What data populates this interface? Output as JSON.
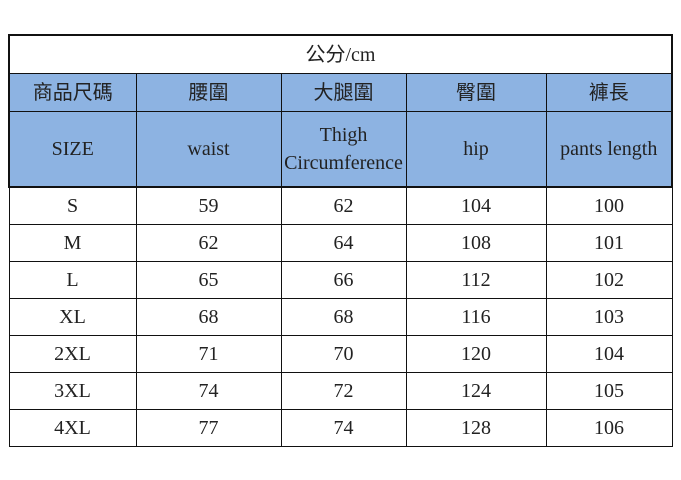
{
  "title": "公分/cm",
  "header_zh": [
    "商品尺碼",
    "腰圍",
    "大腿圍",
    "臀圍",
    "褲長"
  ],
  "header_en": [
    "SIZE",
    "waist",
    "Thigh Circumference",
    "hip",
    "pants length"
  ],
  "header_color": "#8db3e2",
  "rows": [
    [
      "S",
      "59",
      "62",
      "104",
      "100"
    ],
    [
      "M",
      "62",
      "64",
      "108",
      "101"
    ],
    [
      "L",
      "65",
      "66",
      "112",
      "102"
    ],
    [
      "XL",
      "68",
      "68",
      "116",
      "103"
    ],
    [
      "2XL",
      "71",
      "70",
      "120",
      "104"
    ],
    [
      "3XL",
      "74",
      "72",
      "124",
      "105"
    ],
    [
      "4XL",
      "77",
      "74",
      "128",
      "106"
    ]
  ]
}
